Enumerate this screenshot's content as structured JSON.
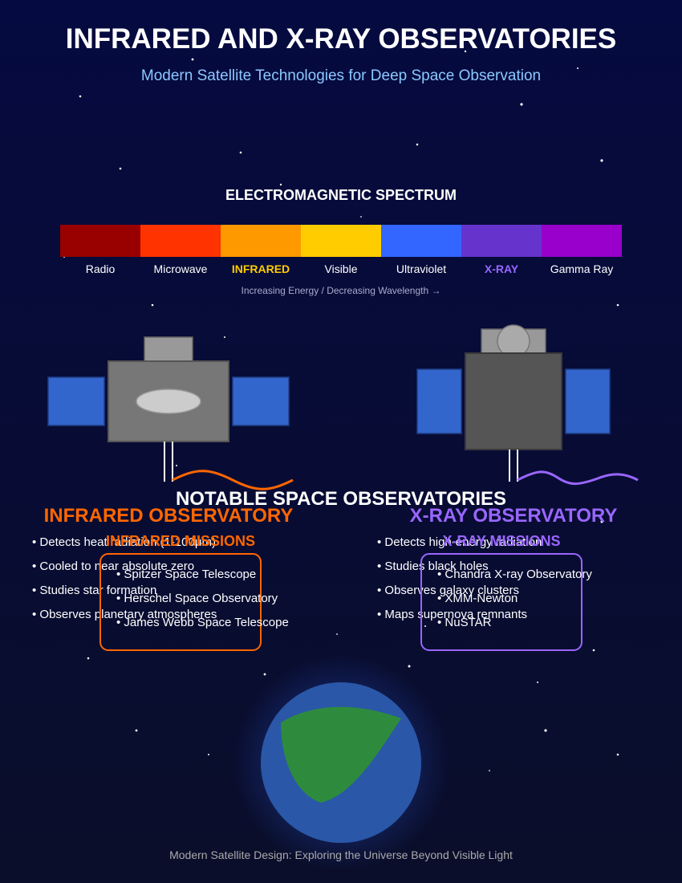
{
  "title": "INFRARED AND X-RAY OBSERVATORIES",
  "subtitle": "Modern Satellite Technologies for Deep Space Observation",
  "spectrum": {
    "heading": "ELECTROMAGNETIC SPECTRUM",
    "bands": [
      {
        "label": "Radio",
        "color": "#990000",
        "highlight": false
      },
      {
        "label": "Microwave",
        "color": "#ff3300",
        "highlight": false
      },
      {
        "label": "INFRARED",
        "color": "#ff9900",
        "highlight": true,
        "label_color": "#ffcc00"
      },
      {
        "label": "Visible",
        "color": "#ffcc00",
        "highlight": false
      },
      {
        "label": "Ultraviolet",
        "color": "#3366ff",
        "highlight": false
      },
      {
        "label": "X-RAY",
        "color": "#6633cc",
        "highlight": true,
        "label_color": "#9966ff"
      },
      {
        "label": "Gamma Ray",
        "color": "#9900cc",
        "highlight": false
      }
    ],
    "caption": "Increasing Energy / Decreasing Wavelength →"
  },
  "infrared": {
    "heading": "INFRARED OBSERVATORY",
    "color": "#ff6600",
    "features": [
      "• Detects heat radiation (1-100μm)",
      "• Cooled to near absolute zero",
      "• Studies star formation",
      "• Observes planetary atmospheres"
    ],
    "missions_heading": "INFRARED MISSIONS",
    "missions": [
      "• Spitzer Space Telescope",
      "• Herschel Space Observatory",
      "• James Webb Space Telescope"
    ]
  },
  "xray": {
    "heading": "X-RAY OBSERVATORY",
    "color": "#9966ff",
    "features": [
      "• Detects high-energy radiation",
      "• Studies black holes",
      "• Observes galaxy clusters",
      "• Maps supernova remnants"
    ],
    "missions_heading": "X-RAY MISSIONS",
    "missions": [
      "• Chandra X-ray Observatory",
      "• XMM-Newton",
      "• NuSTAR"
    ]
  },
  "notable_heading": "NOTABLE SPACE OBSERVATORIES",
  "footer": "Modern Satellite Design: Exploring the Universe Beyond Visible Light",
  "colors": {
    "background": "#080c3a",
    "panel_blue": "#3366cc",
    "earth_blue": "#2a57a8",
    "earth_green": "#2e8b3e"
  }
}
